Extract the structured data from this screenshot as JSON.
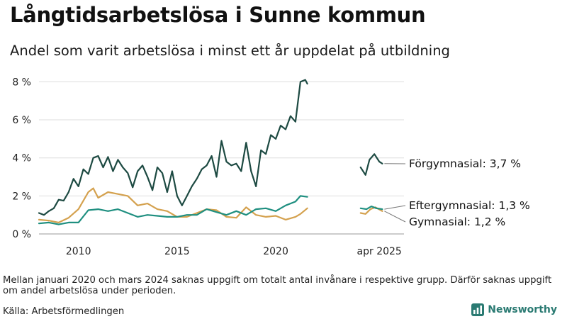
{
  "title": "Långtidsarbetslösa i Sunne kommun",
  "subtitle": "Andel som varit arbetslösa i minst ett år uppdelat på utbildning",
  "note": "Mellan januari 2020 och mars 2024 saknas uppgift om totalt antal invånare i respektive grupp. Därför saknas uppgift om andel arbetslösa under perioden.",
  "source": "Källa: Arbetsförmedlingen",
  "brand": {
    "name": "Newsworthy",
    "icon": "newsworthy-logo-icon",
    "color": "#2a7a72"
  },
  "chart_data": {
    "type": "line",
    "title": "Långtidsarbetslösa i Sunne kommun",
    "subtitle": "Andel som varit arbetslösa i minst ett år uppdelat på utbildning",
    "ylim": [
      0,
      8.5
    ],
    "yticks": [
      0,
      2,
      4,
      6,
      8
    ],
    "ytick_labels": [
      "0 %",
      "2 %",
      "4 %",
      "6 %",
      "8 %"
    ],
    "xlim": [
      2008.0,
      2026.5
    ],
    "xticks": [
      2010,
      2015,
      2020,
      2025.25
    ],
    "xtick_labels": [
      "2010",
      "2015",
      "2020",
      "apr 2025"
    ],
    "grid": true,
    "series": [
      {
        "name": "Förgymnasial",
        "end_label": "Förgymnasial: 3,7 %",
        "color": "#1d4a42",
        "segments": [
          [
            [
              2008.0,
              1.1
            ],
            [
              2008.25,
              1.0
            ],
            [
              2008.5,
              1.2
            ],
            [
              2008.75,
              1.35
            ],
            [
              2009.0,
              1.8
            ],
            [
              2009.25,
              1.75
            ],
            [
              2009.5,
              2.2
            ],
            [
              2009.75,
              2.9
            ],
            [
              2010.0,
              2.5
            ],
            [
              2010.25,
              3.4
            ],
            [
              2010.5,
              3.15
            ],
            [
              2010.75,
              4.0
            ],
            [
              2011.0,
              4.1
            ],
            [
              2011.25,
              3.5
            ],
            [
              2011.5,
              4.05
            ],
            [
              2011.75,
              3.3
            ],
            [
              2012.0,
              3.9
            ],
            [
              2012.25,
              3.5
            ],
            [
              2012.5,
              3.2
            ],
            [
              2012.75,
              2.45
            ],
            [
              2013.0,
              3.3
            ],
            [
              2013.25,
              3.6
            ],
            [
              2013.5,
              3.0
            ],
            [
              2013.75,
              2.3
            ],
            [
              2014.0,
              3.5
            ],
            [
              2014.25,
              3.2
            ],
            [
              2014.5,
              2.2
            ],
            [
              2014.75,
              3.3
            ],
            [
              2015.0,
              2.0
            ],
            [
              2015.25,
              1.5
            ],
            [
              2015.5,
              2.0
            ],
            [
              2015.75,
              2.5
            ],
            [
              2016.0,
              2.9
            ],
            [
              2016.25,
              3.4
            ],
            [
              2016.5,
              3.6
            ],
            [
              2016.75,
              4.1
            ],
            [
              2017.0,
              3.0
            ],
            [
              2017.25,
              4.9
            ],
            [
              2017.5,
              3.8
            ],
            [
              2017.75,
              3.6
            ],
            [
              2018.0,
              3.7
            ],
            [
              2018.25,
              3.3
            ],
            [
              2018.5,
              4.8
            ],
            [
              2018.75,
              3.3
            ],
            [
              2019.0,
              2.5
            ],
            [
              2019.25,
              4.4
            ],
            [
              2019.5,
              4.2
            ],
            [
              2019.75,
              5.2
            ],
            [
              2020.0,
              5.0
            ],
            [
              2020.25,
              5.7
            ],
            [
              2020.5,
              5.5
            ],
            [
              2020.75,
              6.2
            ],
            [
              2021.0,
              5.9
            ],
            [
              2021.25,
              8.0
            ],
            [
              2021.5,
              8.1
            ],
            [
              2021.6,
              7.9
            ]
          ],
          [
            [
              2024.3,
              3.5
            ],
            [
              2024.55,
              3.1
            ],
            [
              2024.75,
              3.9
            ],
            [
              2025.0,
              4.2
            ],
            [
              2025.25,
              3.8
            ],
            [
              2025.4,
              3.7
            ]
          ]
        ]
      },
      {
        "name": "Eftergymnasial",
        "end_label": "Eftergymnasial: 1,3 %",
        "color": "#1f8f80",
        "segments": [
          [
            [
              2008.0,
              0.55
            ],
            [
              2008.5,
              0.6
            ],
            [
              2009.0,
              0.5
            ],
            [
              2009.5,
              0.6
            ],
            [
              2010.0,
              0.6
            ],
            [
              2010.5,
              1.25
            ],
            [
              2011.0,
              1.3
            ],
            [
              2011.5,
              1.2
            ],
            [
              2012.0,
              1.3
            ],
            [
              2012.5,
              1.1
            ],
            [
              2013.0,
              0.9
            ],
            [
              2013.5,
              1.0
            ],
            [
              2014.0,
              0.95
            ],
            [
              2014.5,
              0.9
            ],
            [
              2015.0,
              0.9
            ],
            [
              2015.5,
              1.0
            ],
            [
              2016.0,
              1.0
            ],
            [
              2016.5,
              1.3
            ],
            [
              2017.0,
              1.15
            ],
            [
              2017.5,
              1.0
            ],
            [
              2018.0,
              1.2
            ],
            [
              2018.5,
              1.0
            ],
            [
              2019.0,
              1.3
            ],
            [
              2019.5,
              1.35
            ],
            [
              2020.0,
              1.2
            ],
            [
              2020.5,
              1.5
            ],
            [
              2021.0,
              1.7
            ],
            [
              2021.25,
              2.0
            ],
            [
              2021.6,
              1.95
            ]
          ],
          [
            [
              2024.3,
              1.35
            ],
            [
              2024.6,
              1.3
            ],
            [
              2024.85,
              1.45
            ],
            [
              2025.1,
              1.35
            ],
            [
              2025.4,
              1.3
            ]
          ]
        ]
      },
      {
        "name": "Gymnasial",
        "end_label": "Gymnasial: 1,2 %",
        "color": "#d4a14e",
        "segments": [
          [
            [
              2008.0,
              0.75
            ],
            [
              2008.5,
              0.7
            ],
            [
              2009.0,
              0.6
            ],
            [
              2009.5,
              0.85
            ],
            [
              2010.0,
              1.3
            ],
            [
              2010.5,
              2.2
            ],
            [
              2010.75,
              2.4
            ],
            [
              2011.0,
              1.9
            ],
            [
              2011.5,
              2.2
            ],
            [
              2012.0,
              2.1
            ],
            [
              2012.5,
              2.0
            ],
            [
              2013.0,
              1.5
            ],
            [
              2013.5,
              1.6
            ],
            [
              2014.0,
              1.3
            ],
            [
              2014.5,
              1.2
            ],
            [
              2015.0,
              0.9
            ],
            [
              2015.5,
              0.9
            ],
            [
              2016.0,
              1.1
            ],
            [
              2016.5,
              1.3
            ],
            [
              2017.0,
              1.25
            ],
            [
              2017.5,
              0.9
            ],
            [
              2018.0,
              0.85
            ],
            [
              2018.5,
              1.4
            ],
            [
              2019.0,
              1.0
            ],
            [
              2019.5,
              0.9
            ],
            [
              2020.0,
              0.95
            ],
            [
              2020.5,
              0.75
            ],
            [
              2021.0,
              0.9
            ],
            [
              2021.25,
              1.05
            ],
            [
              2021.6,
              1.35
            ]
          ],
          [
            [
              2024.3,
              1.1
            ],
            [
              2024.55,
              1.05
            ],
            [
              2024.8,
              1.3
            ],
            [
              2025.05,
              1.4
            ],
            [
              2025.4,
              1.2
            ]
          ]
        ]
      }
    ]
  }
}
